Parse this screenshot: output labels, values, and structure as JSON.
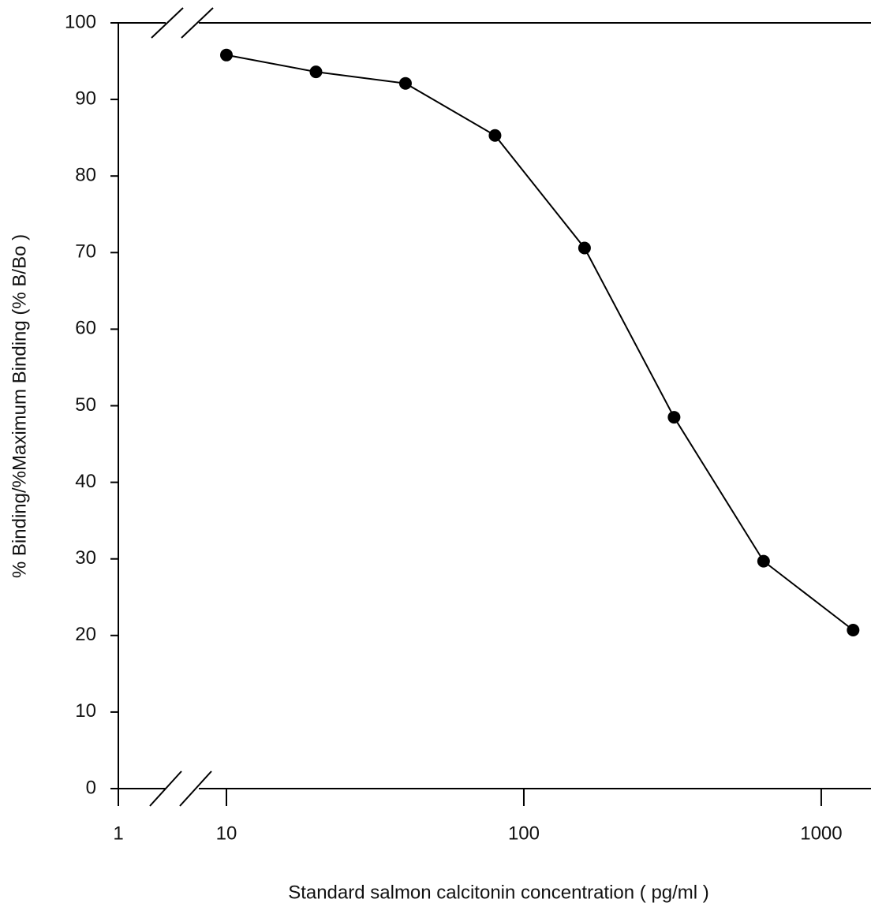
{
  "chart_data": {
    "type": "line",
    "x_label": "Standard salmon calcitonin concentration ( pg/ml )",
    "y_label": "% Binding/%Maximum Binding  (% B/Bo )",
    "x": [
      10,
      20,
      40,
      80,
      160,
      320,
      640,
      1280
    ],
    "series": [
      {
        "color": "#000000",
        "values": [
          95.8,
          93.6,
          92.1,
          85.3,
          70.6,
          48.5,
          29.7,
          20.7
        ]
      }
    ],
    "xlim": [
      1,
      1470
    ],
    "x_log": true,
    "x_break": [
      1,
      10
    ],
    "xticks": [
      1,
      10,
      100,
      1000
    ],
    "ylim": [
      0,
      100
    ],
    "yticks": [
      0,
      10,
      20,
      30,
      40,
      50,
      60,
      70,
      80,
      90,
      100
    ]
  }
}
